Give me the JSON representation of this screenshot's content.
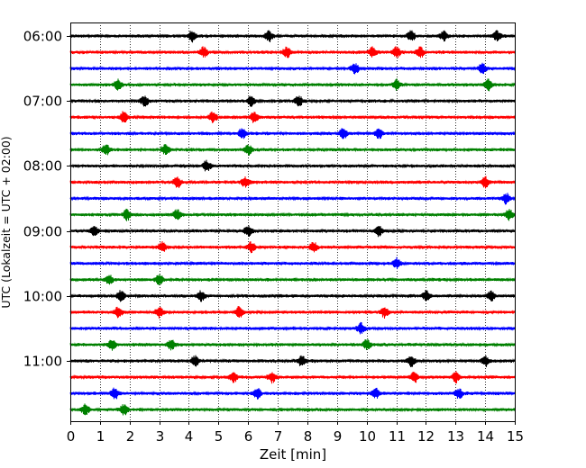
{
  "chart_data": {
    "type": "line",
    "xlabel": "Zeit  [min]",
    "ylabel": "UTC (Lokalzeit = UTC + 02:00)",
    "xlim": [
      0,
      15
    ],
    "x_ticks": [
      "0",
      "1",
      "2",
      "3",
      "4",
      "5",
      "6",
      "7",
      "8",
      "9",
      "10",
      "11",
      "12",
      "13",
      "14",
      "15"
    ],
    "y_ticks": [
      {
        "label": "06:00",
        "trace": 0
      },
      {
        "label": "07:00",
        "trace": 4
      },
      {
        "label": "08:00",
        "trace": 8
      },
      {
        "label": "09:00",
        "trace": 12
      },
      {
        "label": "10:00",
        "trace": 16
      },
      {
        "label": "11:00",
        "trace": 20
      }
    ],
    "grid": "vertical dotted at each minute",
    "trace_colors": [
      "#000000",
      "#ff0000",
      "#0000ff",
      "#008000"
    ],
    "traces": [
      {
        "start": "06:00",
        "color": "#000000",
        "bursts": [
          4.1,
          6.7,
          11.5,
          12.6,
          14.4
        ]
      },
      {
        "start": "06:15",
        "color": "#ff0000",
        "bursts": [
          4.5,
          7.3,
          10.2,
          11.0,
          11.8
        ]
      },
      {
        "start": "06:30",
        "color": "#0000ff",
        "bursts": [
          9.6,
          13.9
        ]
      },
      {
        "start": "06:45",
        "color": "#008000",
        "bursts": [
          1.6,
          11.0,
          14.1
        ]
      },
      {
        "start": "07:00",
        "color": "#000000",
        "bursts": [
          2.5,
          6.1,
          7.7
        ]
      },
      {
        "start": "07:15",
        "color": "#ff0000",
        "bursts": [
          1.8,
          4.8,
          6.2
        ]
      },
      {
        "start": "07:30",
        "color": "#0000ff",
        "bursts": [
          5.8,
          9.2,
          10.4
        ]
      },
      {
        "start": "07:45",
        "color": "#008000",
        "bursts": [
          1.2,
          3.2,
          6.0
        ]
      },
      {
        "start": "08:00",
        "color": "#000000",
        "bursts": [
          4.6
        ]
      },
      {
        "start": "08:15",
        "color": "#ff0000",
        "bursts": [
          3.6,
          5.9,
          14.0
        ]
      },
      {
        "start": "08:30",
        "color": "#0000ff",
        "bursts": [
          14.7
        ]
      },
      {
        "start": "08:45",
        "color": "#008000",
        "bursts": [
          1.9,
          3.6,
          14.8
        ]
      },
      {
        "start": "09:00",
        "color": "#000000",
        "bursts": [
          0.8,
          6.0,
          10.4
        ]
      },
      {
        "start": "09:15",
        "color": "#ff0000",
        "bursts": [
          3.1,
          6.1,
          8.2
        ]
      },
      {
        "start": "09:30",
        "color": "#0000ff",
        "bursts": [
          11.0
        ]
      },
      {
        "start": "09:45",
        "color": "#008000",
        "bursts": [
          1.3,
          3.0
        ]
      },
      {
        "start": "10:00",
        "color": "#000000",
        "bursts": [
          1.7,
          4.4,
          12.0,
          14.2
        ]
      },
      {
        "start": "10:15",
        "color": "#ff0000",
        "bursts": [
          1.6,
          3.0,
          5.7,
          10.6
        ]
      },
      {
        "start": "10:30",
        "color": "#0000ff",
        "bursts": [
          9.8
        ]
      },
      {
        "start": "10:45",
        "color": "#008000",
        "bursts": [
          1.4,
          3.4,
          10.0
        ]
      },
      {
        "start": "11:00",
        "color": "#000000",
        "bursts": [
          4.2,
          7.8,
          11.5,
          14.0
        ]
      },
      {
        "start": "11:15",
        "color": "#ff0000",
        "bursts": [
          5.5,
          6.8,
          11.6,
          13.0
        ]
      },
      {
        "start": "11:30",
        "color": "#0000ff",
        "bursts": [
          1.5,
          6.3,
          10.3,
          13.1
        ]
      },
      {
        "start": "11:45",
        "color": "#008000",
        "bursts": [
          0.5,
          1.8
        ]
      }
    ]
  }
}
